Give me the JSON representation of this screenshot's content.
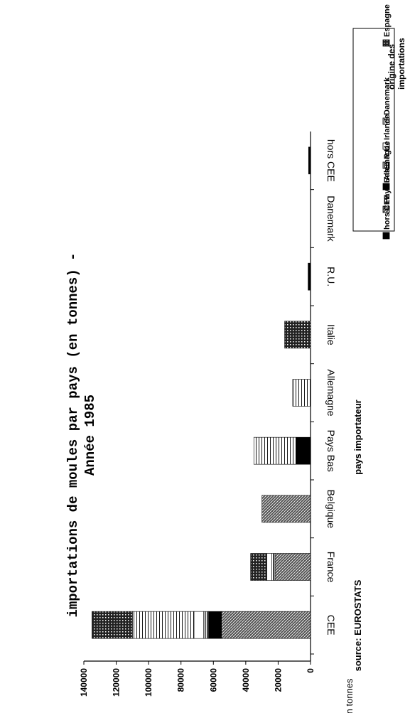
{
  "chart_data": {
    "type": "bar",
    "stacked": true,
    "orientation": "horizontal",
    "title": "importations de moules par pays (en tonnes) -",
    "subtitle": "Année 1985",
    "xlabel": "pays importateur",
    "ylabel": "en tonnes",
    "source": "source: EUROSTATS",
    "legend_title": "origine des importations",
    "legend_position": "top-right",
    "grid": false,
    "ylim": [
      0,
      140000
    ],
    "yticks": [
      "0",
      "20000",
      "40000",
      "60000",
      "80000",
      "100000",
      "120000",
      "140000"
    ],
    "categories": [
      "CEE",
      "France",
      "Belgique",
      "Pays Bas",
      "Allemagne",
      "Italie",
      "R.U.",
      "Danemark",
      "hors CEE"
    ],
    "series": [
      {
        "name": "Pays Bas",
        "color": "#555555",
        "values": [
          55000,
          22000,
          30000,
          0,
          0,
          0,
          0,
          0,
          0
        ]
      },
      {
        "name": "Allemagne",
        "color": "#000000",
        "values": [
          8000,
          0,
          0,
          9000,
          0,
          0,
          1500,
          0,
          1200
        ]
      },
      {
        "name": "R.U",
        "color": "#888888",
        "values": [
          3000,
          2000,
          0,
          0,
          0,
          0,
          0,
          0,
          0
        ]
      },
      {
        "name": "Irlande",
        "color": "#dddddd",
        "values": [
          6000,
          3000,
          0,
          0,
          0,
          0,
          0,
          0,
          0
        ]
      },
      {
        "name": "Danemark",
        "color": "#bbbbbb",
        "values": [
          38000,
          0,
          0,
          26000,
          11000,
          0,
          0,
          0,
          0
        ]
      },
      {
        "name": "Espagne",
        "color": "#333333",
        "values": [
          25000,
          10000,
          0,
          0,
          0,
          16000,
          0,
          0,
          0
        ]
      },
      {
        "name": "hors CEE",
        "color": "#111111",
        "values": [
          0,
          0,
          0,
          0,
          0,
          0,
          0,
          0,
          0
        ]
      }
    ],
    "legend_order": [
      "Espagne",
      "Danemark",
      "Irlande",
      "R.U",
      "Allemagne",
      "Pays Bas",
      "hors CEE"
    ]
  }
}
